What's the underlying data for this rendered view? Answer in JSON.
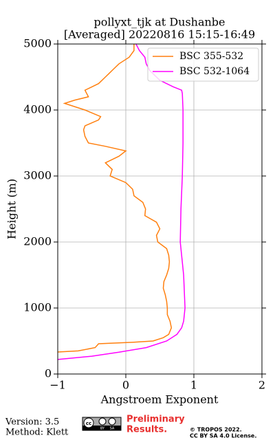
{
  "chart_data": {
    "type": "line",
    "title": "pollyxt_tjk at Dushanbe",
    "subtitle": "[Averaged] 20220816 15:15-16:49",
    "xlabel": "Angstroem Exponent",
    "ylabel": "Height (m)",
    "xlim": [
      -1,
      2
    ],
    "xticks": [
      {
        "value": -1,
        "label": "−1"
      },
      0,
      1,
      2
    ],
    "ylim": [
      0,
      5000
    ],
    "yticks": [
      0,
      1000,
      2000,
      3000,
      4000,
      5000
    ],
    "grid": true,
    "legend": "upper right",
    "series": [
      {
        "name": "BSC 355-532",
        "color": "#ff7f0e",
        "heights": [
          333,
          350,
          400,
          458,
          480,
          500,
          550,
          600,
          700,
          800,
          900,
          1000,
          1100,
          1200,
          1300,
          1400,
          1500,
          1600,
          1700,
          1800,
          1900,
          2000,
          2100,
          2200,
          2300,
          2400,
          2500,
          2600,
          2700,
          2800,
          2900,
          3000,
          3100,
          3200,
          3300,
          3380,
          3450,
          3500,
          3600,
          3700,
          3760,
          3850,
          3900,
          4000,
          4100,
          4150,
          4200,
          4300,
          4350,
          4400,
          4500,
          4550,
          4600,
          4700,
          4800,
          4900,
          5000
        ],
        "values": [
          -1,
          -0.7,
          -0.45,
          -0.4,
          0.1,
          0.4,
          0.55,
          0.63,
          0.67,
          0.65,
          0.61,
          0.61,
          0.6,
          0.58,
          0.55,
          0.56,
          0.6,
          0.63,
          0.64,
          0.63,
          0.6,
          0.47,
          0.45,
          0.5,
          0.45,
          0.28,
          0.29,
          0.25,
          0.12,
          0.1,
          0.0,
          -0.23,
          -0.2,
          -0.3,
          -0.1,
          0.0,
          -0.3,
          -0.55,
          -0.6,
          -0.62,
          -0.6,
          -0.4,
          -0.37,
          -0.6,
          -0.9,
          -0.75,
          -0.55,
          -0.6,
          -0.5,
          -0.4,
          -0.3,
          -0.25,
          -0.2,
          -0.1,
          0.05,
          0.12,
          0.12
        ]
      },
      {
        "name": "BSC 532-1064",
        "color": "#ff00ff",
        "heights": [
          220,
          270,
          330,
          400,
          500,
          600,
          700,
          800,
          1000,
          1500,
          2000,
          2500,
          3000,
          3500,
          4000,
          4250,
          4300,
          4350,
          4450,
          4600,
          4700,
          4800,
          4900,
          5000
        ],
        "values": [
          -1,
          -0.5,
          -0.1,
          0.3,
          0.6,
          0.75,
          0.82,
          0.85,
          0.87,
          0.85,
          0.8,
          0.81,
          0.83,
          0.84,
          0.84,
          0.83,
          0.82,
          0.7,
          0.5,
          0.35,
          0.3,
          0.28,
          0.2,
          0.15
        ]
      }
    ]
  },
  "footer": {
    "version": "Version: 3.5",
    "method": "Method: Klett",
    "badge": [
      "cc",
      "BY",
      "SA"
    ],
    "preliminary": [
      "Preliminary",
      "Results."
    ],
    "copyright": [
      "© TROPOS 2022.",
      "CC BY SA 4.0 License."
    ]
  }
}
